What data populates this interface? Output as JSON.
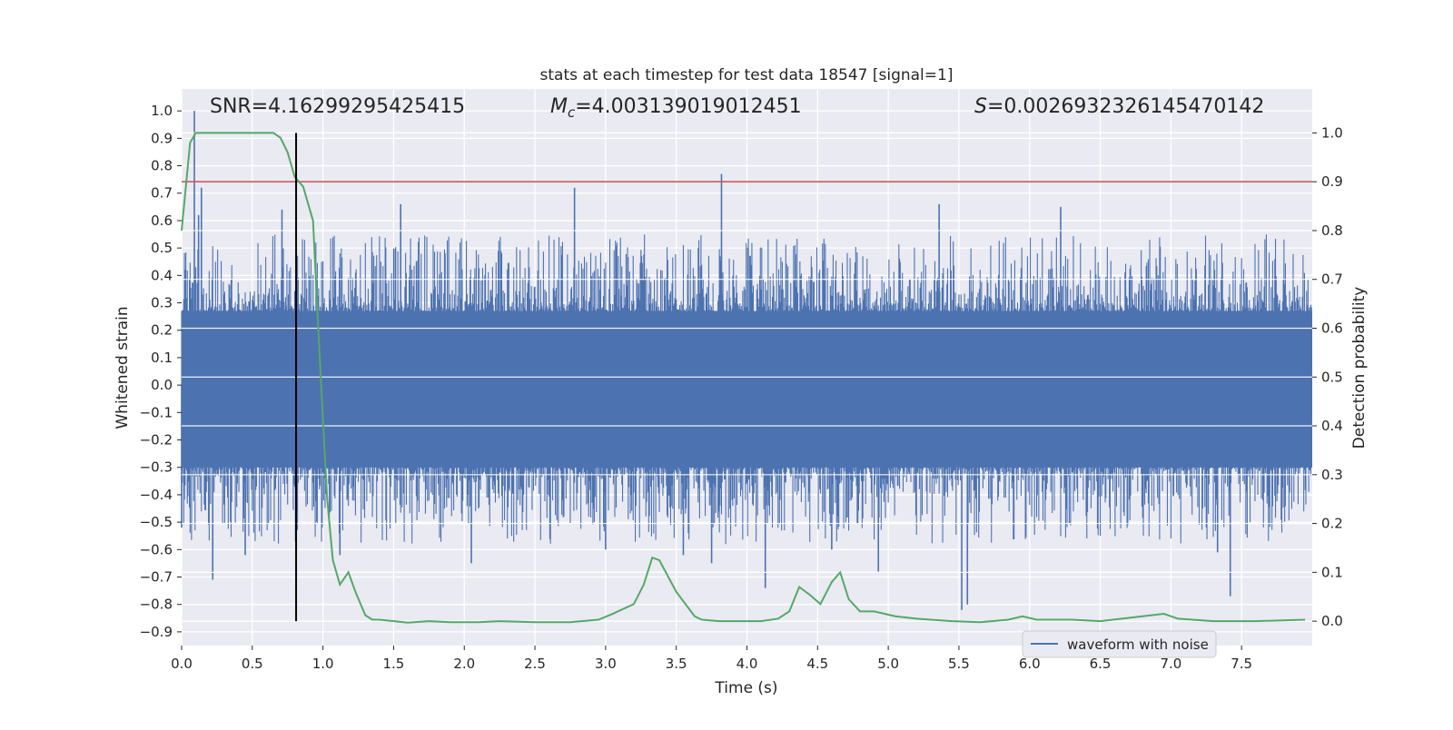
{
  "chart_data": {
    "type": "line",
    "title": "stats at each timestep for test data 18547 [signal=1]",
    "xlabel": "Time (s)",
    "ylabel_left": "Whitened strain",
    "ylabel_right": "Detection probability",
    "xlim": [
      0.0,
      8.0
    ],
    "ylim_left": [
      -0.95,
      1.08
    ],
    "ylim_right": [
      -0.05,
      1.09
    ],
    "x_ticks": [
      "0.0",
      "0.5",
      "1.0",
      "1.5",
      "2.0",
      "2.5",
      "3.0",
      "3.5",
      "4.0",
      "4.5",
      "5.0",
      "5.5",
      "6.0",
      "6.5",
      "7.0",
      "7.5"
    ],
    "y_left_ticks": [
      "1.0",
      "0.9",
      "0.8",
      "0.7",
      "0.6",
      "0.5",
      "0.4",
      "0.3",
      "0.2",
      "0.1",
      "0.0",
      "−0.1",
      "−0.2",
      "−0.3",
      "−0.4",
      "−0.5",
      "−0.6",
      "−0.7",
      "−0.8",
      "−0.9"
    ],
    "y_right_ticks": [
      "1.0",
      "0.9",
      "0.8",
      "0.7",
      "0.6",
      "0.5",
      "0.4",
      "0.3",
      "0.2",
      "0.1",
      "0.0"
    ],
    "annotations": {
      "snr": "SNR=4.16299295425415",
      "mc_symbol": "M",
      "mc_sub": "c",
      "mc_value": "=4.003139019012451",
      "s_symbol": "S",
      "s_value": "=0.0026932326145470142"
    },
    "grid": true,
    "legend": {
      "position": "lower-right",
      "entries": [
        "waveform with noise"
      ]
    },
    "colors": {
      "waveform": "#4c72b0",
      "probability": "#55a868",
      "threshold": "#c44e52",
      "marker": "#000000",
      "background": "#eaeaf2",
      "grid": "#ffffff"
    },
    "threshold_line": {
      "axis": "right",
      "y": 0.9
    },
    "marker_line": {
      "x": 0.81,
      "y_range_right": [
        0.0,
        1.0
      ]
    },
    "series": [
      {
        "name": "waveform with noise",
        "axis": "left",
        "style": "noise-band",
        "band_envelope": [
          -0.3,
          0.27
        ],
        "spikes": [
          {
            "x": 0.09,
            "y": 1.0
          },
          {
            "x": 0.14,
            "y": 0.72
          },
          {
            "x": 0.12,
            "y": 0.62
          },
          {
            "x": 0.71,
            "y": 0.64
          },
          {
            "x": 2.78,
            "y": 0.72
          },
          {
            "x": 3.82,
            "y": 0.77
          },
          {
            "x": 1.55,
            "y": 0.66
          },
          {
            "x": 5.36,
            "y": 0.66
          },
          {
            "x": 6.22,
            "y": 0.65
          },
          {
            "x": 0.22,
            "y": -0.71
          },
          {
            "x": 0.45,
            "y": -0.62
          },
          {
            "x": 1.12,
            "y": -0.62
          },
          {
            "x": 2.05,
            "y": -0.65
          },
          {
            "x": 3.0,
            "y": -0.6
          },
          {
            "x": 3.55,
            "y": -0.62
          },
          {
            "x": 3.75,
            "y": -0.65
          },
          {
            "x": 4.13,
            "y": -0.74
          },
          {
            "x": 4.6,
            "y": -0.6
          },
          {
            "x": 4.93,
            "y": -0.68
          },
          {
            "x": 5.52,
            "y": -0.82
          },
          {
            "x": 5.56,
            "y": -0.8
          },
          {
            "x": 7.33,
            "y": -0.61
          },
          {
            "x": 7.42,
            "y": -0.77
          },
          {
            "x": 0.0,
            "y": -0.52
          }
        ]
      },
      {
        "name": "",
        "axis": "right",
        "style": "line",
        "x": [
          0.0,
          0.06,
          0.1,
          0.15,
          0.5,
          0.65,
          0.7,
          0.75,
          0.8,
          0.86,
          0.93,
          0.97,
          1.03,
          1.07,
          1.12,
          1.18,
          1.23,
          1.3,
          1.35,
          1.4,
          1.5,
          1.6,
          1.75,
          1.9,
          2.1,
          2.25,
          2.5,
          2.75,
          2.95,
          3.05,
          3.2,
          3.27,
          3.33,
          3.38,
          3.5,
          3.63,
          3.68,
          3.8,
          4.1,
          4.22,
          4.3,
          4.37,
          4.44,
          4.52,
          4.6,
          4.66,
          4.72,
          4.8,
          4.9,
          5.05,
          5.2,
          5.45,
          5.65,
          5.85,
          5.95,
          6.05,
          6.3,
          6.5,
          6.8,
          6.95,
          7.05,
          7.3,
          7.6,
          7.95
        ],
        "y": [
          0.8,
          0.98,
          1.0,
          1.0,
          1.0,
          1.0,
          0.99,
          0.96,
          0.91,
          0.89,
          0.82,
          0.58,
          0.25,
          0.125,
          0.075,
          0.1,
          0.06,
          0.012,
          0.003,
          0.003,
          0.0,
          -0.003,
          0.0,
          -0.002,
          -0.002,
          0.0,
          -0.002,
          -0.002,
          0.003,
          0.015,
          0.035,
          0.075,
          0.13,
          0.125,
          0.06,
          0.01,
          0.003,
          0.0,
          0.0,
          0.005,
          0.02,
          0.07,
          0.055,
          0.035,
          0.08,
          0.1,
          0.045,
          0.02,
          0.02,
          0.01,
          0.005,
          0.0,
          -0.002,
          0.003,
          0.01,
          0.003,
          0.003,
          0.0,
          0.01,
          0.015,
          0.005,
          0.0,
          0.0,
          0.003
        ]
      }
    ]
  }
}
